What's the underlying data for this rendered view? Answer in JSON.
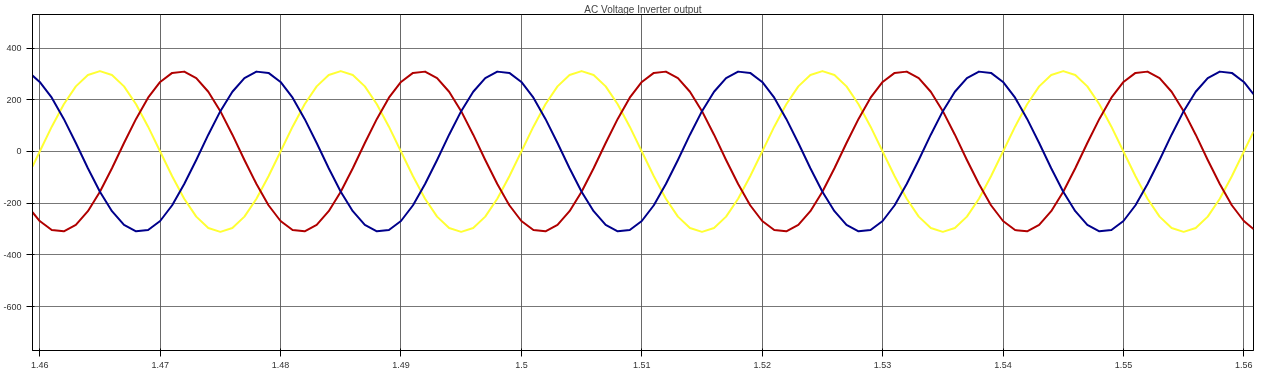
{
  "chart_data": {
    "type": "line",
    "title": "AC Voltage Inverter output",
    "x": [
      1.4594,
      1.46,
      1.461,
      1.462,
      1.463,
      1.464,
      1.465,
      1.466,
      1.467,
      1.468,
      1.469,
      1.47,
      1.471,
      1.472,
      1.473,
      1.474,
      1.475,
      1.476,
      1.477,
      1.478,
      1.479,
      1.48,
      1.481,
      1.482,
      1.483,
      1.484,
      1.485,
      1.486,
      1.487,
      1.488,
      1.489,
      1.49,
      1.491,
      1.492,
      1.493,
      1.494,
      1.495,
      1.496,
      1.497,
      1.498,
      1.499,
      1.5,
      1.501,
      1.502,
      1.503,
      1.504,
      1.505,
      1.506,
      1.507,
      1.508,
      1.509,
      1.51,
      1.511,
      1.512,
      1.513,
      1.514,
      1.515,
      1.516,
      1.517,
      1.518,
      1.519,
      1.52,
      1.521,
      1.522,
      1.523,
      1.524,
      1.525,
      1.526,
      1.527,
      1.528,
      1.529,
      1.53,
      1.531,
      1.532,
      1.533,
      1.534,
      1.535,
      1.536,
      1.537,
      1.538,
      1.539,
      1.54,
      1.541,
      1.542,
      1.543,
      1.544,
      1.545,
      1.546,
      1.547,
      1.548,
      1.549,
      1.55,
      1.551,
      1.552,
      1.553,
      1.554,
      1.555,
      1.556,
      1.557,
      1.558,
      1.559,
      1.56,
      1.5608
    ],
    "series": [
      {
        "color": "#ffff33",
        "values": [
          -58,
          0,
          96,
          183,
          252,
          296,
          311,
          296,
          252,
          183,
          96,
          0,
          -96,
          -183,
          -252,
          -296,
          -311,
          -296,
          -252,
          -183,
          -96,
          0,
          96,
          183,
          252,
          296,
          311,
          296,
          252,
          183,
          96,
          0,
          -96,
          -183,
          -252,
          -296,
          -311,
          -296,
          -252,
          -183,
          -96,
          0,
          96,
          183,
          252,
          296,
          311,
          296,
          252,
          183,
          96,
          0,
          -96,
          -183,
          -252,
          -296,
          -311,
          -296,
          -252,
          -183,
          -96,
          0,
          96,
          183,
          252,
          296,
          311,
          296,
          252,
          183,
          96,
          0,
          -96,
          -183,
          -252,
          -296,
          -311,
          -296,
          -252,
          -183,
          -96,
          0,
          96,
          183,
          252,
          296,
          311,
          296,
          252,
          183,
          96,
          0,
          -96,
          -183,
          -252,
          -296,
          -311,
          -296,
          -252,
          -183,
          -96,
          0,
          77
        ]
      },
      {
        "color": "#b00000",
        "values": [
          -235,
          -269,
          -304,
          -309,
          -284,
          -231,
          -156,
          -65,
          33,
          126,
          208,
          269,
          304,
          309,
          284,
          231,
          156,
          65,
          -33,
          -126,
          -208,
          -269,
          -304,
          -309,
          -284,
          -231,
          -156,
          -65,
          33,
          126,
          208,
          269,
          304,
          309,
          284,
          231,
          156,
          65,
          -33,
          -126,
          -208,
          -269,
          -304,
          -309,
          -284,
          -231,
          -156,
          -65,
          33,
          126,
          208,
          269,
          304,
          309,
          284,
          231,
          156,
          65,
          -33,
          -126,
          -208,
          -269,
          -304,
          -309,
          -284,
          -231,
          -156,
          -65,
          33,
          126,
          208,
          269,
          304,
          309,
          284,
          231,
          156,
          65,
          -33,
          -126,
          -208,
          -269,
          -304,
          -309,
          -284,
          -231,
          -156,
          -65,
          33,
          126,
          208,
          269,
          304,
          309,
          284,
          231,
          156,
          65,
          -33,
          -126,
          -208,
          -269,
          -300
        ]
      },
      {
        "color": "#00008b",
        "values": [
          294,
          269,
          208,
          126,
          33,
          -65,
          -156,
          -231,
          -284,
          -309,
          -304,
          -269,
          -208,
          -126,
          -33,
          65,
          156,
          231,
          284,
          309,
          304,
          269,
          208,
          126,
          33,
          -65,
          -156,
          -231,
          -284,
          -309,
          -304,
          -269,
          -208,
          -126,
          -33,
          65,
          156,
          231,
          284,
          309,
          304,
          269,
          208,
          126,
          33,
          -65,
          -156,
          -231,
          -284,
          -309,
          -304,
          -269,
          -208,
          -126,
          -33,
          65,
          156,
          231,
          284,
          309,
          304,
          269,
          208,
          126,
          33,
          -65,
          -156,
          -231,
          -284,
          -309,
          -304,
          -269,
          -208,
          -126,
          -33,
          65,
          156,
          231,
          284,
          309,
          304,
          269,
          208,
          126,
          33,
          -65,
          -156,
          -231,
          -284,
          -309,
          -304,
          -269,
          -208,
          -126,
          -33,
          65,
          156,
          231,
          284,
          309,
          304,
          269,
          222
        ]
      }
    ],
    "xlim": [
      1.4594,
      1.5608
    ],
    "ylim": [
      -770,
      530
    ],
    "xticks": [
      1.46,
      1.47,
      1.48,
      1.49,
      1.5,
      1.51,
      1.52,
      1.53,
      1.54,
      1.55,
      1.56
    ],
    "yticks": [
      -600,
      -400,
      -200,
      0,
      200,
      400
    ],
    "grid": true,
    "line_style": "solid"
  }
}
